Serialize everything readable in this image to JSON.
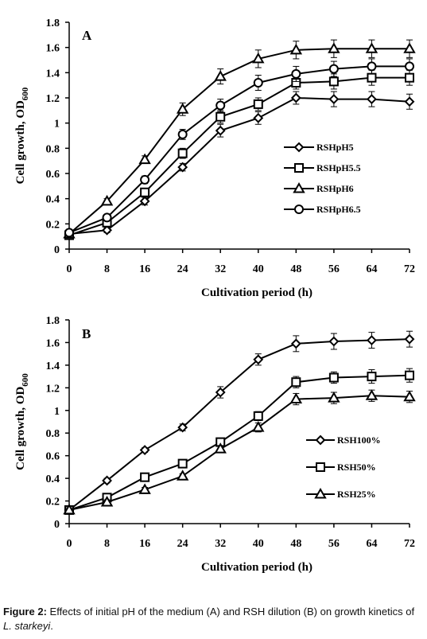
{
  "caption": {
    "label": "Figure 2:",
    "text": " Effects of initial pH of the medium (A) and RSH dilution (B) on growth kinetics of ",
    "species": "L. starkeyi",
    "end": "."
  },
  "chart_data": [
    {
      "type": "line",
      "panel_label": "A",
      "xlabel": "Cultivation period (h)",
      "ylabel_main": "Cell growth, OD",
      "ylabel_sub": "600",
      "x": [
        0,
        8,
        16,
        24,
        32,
        40,
        48,
        56,
        64,
        72
      ],
      "x_tick_labels": [
        "0",
        "8",
        "16",
        "24",
        "32",
        "40",
        "48",
        "56",
        "64",
        "72"
      ],
      "xlim": [
        0,
        72
      ],
      "ylim": [
        0,
        1.8
      ],
      "y_ticks": [
        0,
        0.2,
        0.4,
        0.6,
        0.8,
        1,
        1.2,
        1.4,
        1.6,
        1.8
      ],
      "y_tick_labels": [
        "0",
        "0.2",
        "0.4",
        "0.6",
        "0.8",
        "1",
        "1.2",
        "1.4",
        "1.6",
        "1.8"
      ],
      "grid": false,
      "legend_position": "middle-right",
      "series": [
        {
          "name": "RSHpH5",
          "marker": "diamond",
          "values": [
            0.12,
            0.15,
            0.38,
            0.65,
            0.94,
            1.04,
            1.2,
            1.19,
            1.19,
            1.17
          ],
          "errors": [
            0.02,
            0.02,
            0.03,
            0.03,
            0.05,
            0.05,
            0.05,
            0.06,
            0.06,
            0.06
          ]
        },
        {
          "name": "RSHpH5.5",
          "marker": "square",
          "values": [
            0.11,
            0.21,
            0.45,
            0.76,
            1.05,
            1.15,
            1.32,
            1.33,
            1.36,
            1.36
          ],
          "errors": [
            0.02,
            0.02,
            0.03,
            0.04,
            0.05,
            0.05,
            0.05,
            0.06,
            0.06,
            0.06
          ]
        },
        {
          "name": "RSHpH6",
          "marker": "triangle",
          "values": [
            0.12,
            0.38,
            0.71,
            1.11,
            1.37,
            1.51,
            1.58,
            1.59,
            1.59,
            1.59
          ],
          "errors": [
            0.02,
            0.02,
            0.03,
            0.05,
            0.06,
            0.07,
            0.07,
            0.07,
            0.07,
            0.07
          ]
        },
        {
          "name": "RSHpH6.5",
          "marker": "circle",
          "values": [
            0.13,
            0.25,
            0.55,
            0.91,
            1.14,
            1.32,
            1.39,
            1.43,
            1.45,
            1.45
          ],
          "errors": [
            0.02,
            0.02,
            0.03,
            0.04,
            0.05,
            0.06,
            0.06,
            0.06,
            0.06,
            0.06
          ]
        }
      ]
    },
    {
      "type": "line",
      "panel_label": "B",
      "xlabel": "Cultivation period (h)",
      "ylabel_main": "Cell growth, OD",
      "ylabel_sub": "600",
      "x": [
        0,
        8,
        16,
        24,
        32,
        40,
        48,
        56,
        64,
        72
      ],
      "x_tick_labels": [
        "0",
        "8",
        "16",
        "24",
        "32",
        "40",
        "48",
        "56",
        "64",
        "72"
      ],
      "xlim": [
        0,
        72
      ],
      "ylim": [
        0,
        1.8
      ],
      "y_ticks": [
        0,
        0.2,
        0.4,
        0.6,
        0.8,
        1,
        1.2,
        1.4,
        1.6,
        1.8
      ],
      "y_tick_labels": [
        "0",
        "0.2",
        "0.4",
        "0.6",
        "0.8",
        "1",
        "1.2",
        "1.4",
        "1.6",
        "1.8"
      ],
      "grid": false,
      "legend_position": "lower-right",
      "series": [
        {
          "name": "RSH100%",
          "marker": "diamond",
          "values": [
            0.12,
            0.38,
            0.65,
            0.85,
            1.16,
            1.45,
            1.59,
            1.61,
            1.62,
            1.63
          ],
          "errors": [
            0.02,
            0.02,
            0.02,
            0.03,
            0.05,
            0.05,
            0.07,
            0.07,
            0.07,
            0.07
          ]
        },
        {
          "name": "RSH50%",
          "marker": "square",
          "values": [
            0.12,
            0.23,
            0.41,
            0.53,
            0.72,
            0.95,
            1.25,
            1.29,
            1.3,
            1.31
          ],
          "errors": [
            0.02,
            0.02,
            0.02,
            0.03,
            0.03,
            0.04,
            0.05,
            0.05,
            0.06,
            0.06
          ]
        },
        {
          "name": "RSH25%",
          "marker": "triangle",
          "values": [
            0.12,
            0.19,
            0.3,
            0.42,
            0.66,
            0.85,
            1.1,
            1.11,
            1.13,
            1.12
          ],
          "errors": [
            0.02,
            0.02,
            0.02,
            0.02,
            0.03,
            0.04,
            0.05,
            0.05,
            0.05,
            0.05
          ]
        }
      ]
    }
  ]
}
